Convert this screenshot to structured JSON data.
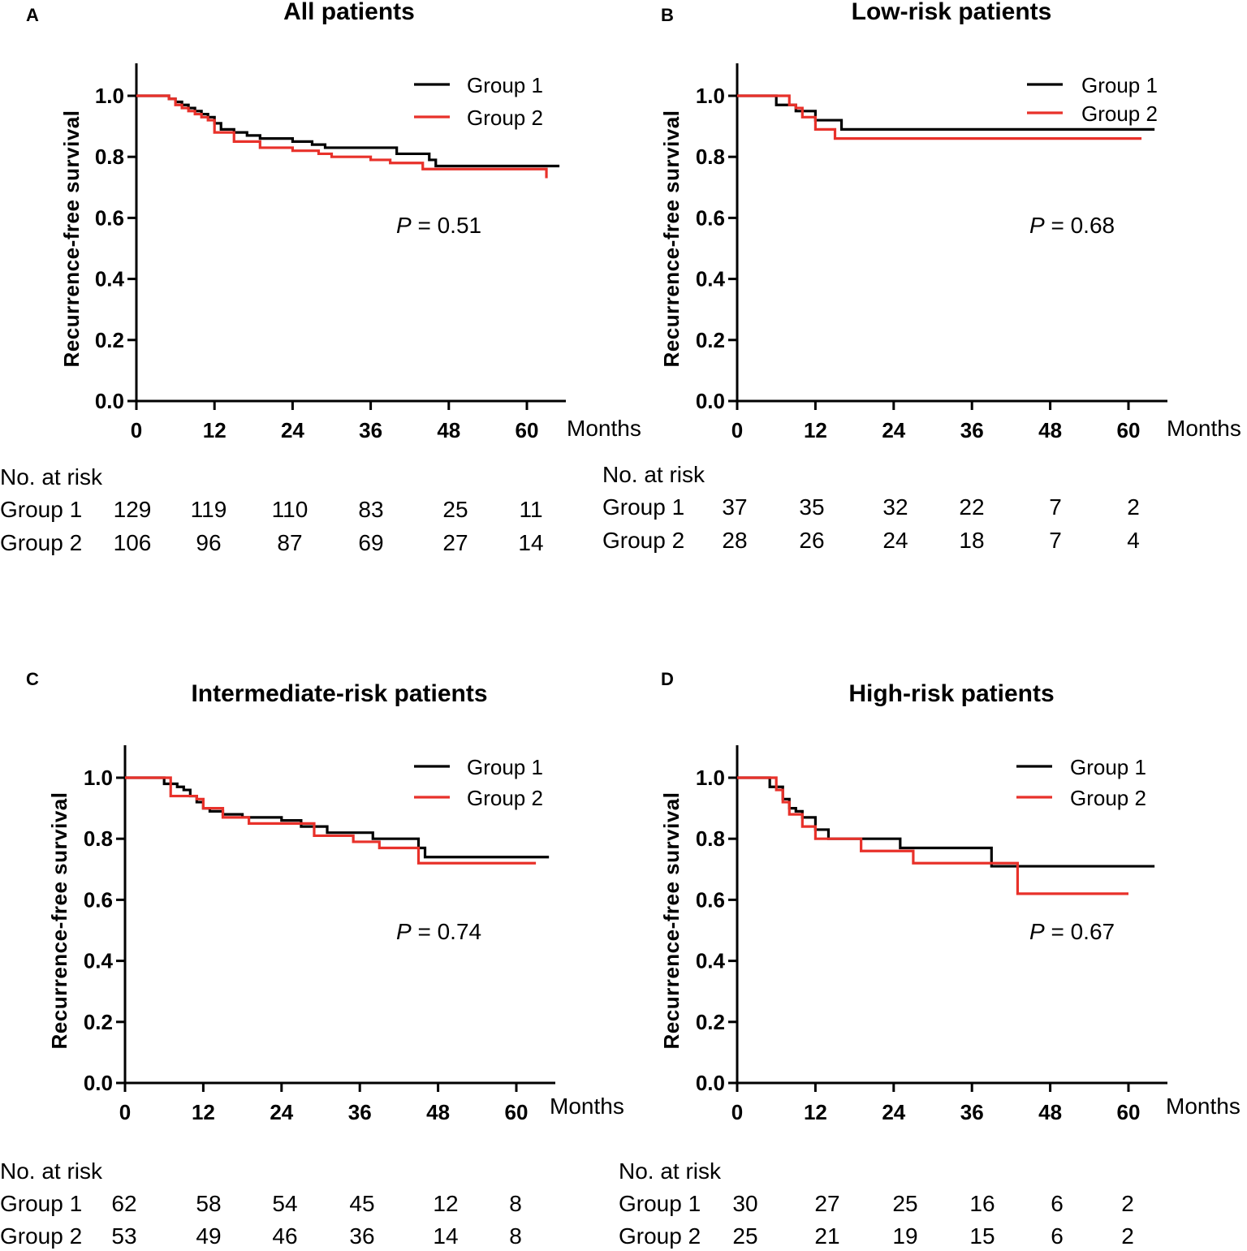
{
  "figure": {
    "colors": {
      "group1": "#000000",
      "group2": "#e8312a"
    }
  },
  "chart_data": [
    {
      "type": "line",
      "panel": "A",
      "title": "All patients",
      "xlabel": "Months",
      "ylabel": "Recurrence-free survival",
      "xlim": [
        0,
        65
      ],
      "ylim": [
        0,
        1.1
      ],
      "xticks": [
        "0",
        "12",
        "24",
        "36",
        "48",
        "60"
      ],
      "yticks": [
        "0.0",
        "0.2",
        "0.4",
        "0.6",
        "0.8",
        "1.0"
      ],
      "legend_position": "top-right",
      "p_value_prefix": "P",
      "p_value_text": " = 0.51",
      "series": [
        {
          "name": "Group 1",
          "color": "#000000",
          "x": [
            0,
            5,
            6,
            7,
            8,
            9,
            10,
            11,
            12,
            13,
            15,
            17,
            19,
            24,
            27,
            29,
            33,
            40,
            45,
            46,
            65
          ],
          "y": [
            1.0,
            0.99,
            0.98,
            0.97,
            0.96,
            0.95,
            0.94,
            0.93,
            0.91,
            0.89,
            0.88,
            0.87,
            0.86,
            0.85,
            0.84,
            0.83,
            0.83,
            0.81,
            0.79,
            0.77,
            0.77
          ]
        },
        {
          "name": "Group 2",
          "color": "#e8312a",
          "x": [
            0,
            5,
            6,
            7,
            8,
            9,
            10,
            11,
            12,
            15,
            19,
            24,
            28,
            30,
            36,
            39,
            44,
            63
          ],
          "y": [
            1.0,
            0.99,
            0.97,
            0.96,
            0.95,
            0.94,
            0.93,
            0.92,
            0.88,
            0.85,
            0.83,
            0.82,
            0.81,
            0.8,
            0.79,
            0.78,
            0.76,
            0.73
          ]
        }
      ],
      "at_risk": {
        "header": "No. at risk",
        "rows": [
          {
            "label": "Group 1",
            "values": [
              "129",
              "119",
              "110",
              "83",
              "25",
              "11"
            ]
          },
          {
            "label": "Group 2",
            "values": [
              "106",
              "96",
              "87",
              "69",
              "27",
              "14"
            ]
          }
        ]
      }
    },
    {
      "type": "line",
      "panel": "B",
      "title": "Low-risk patients",
      "xlabel": "Months",
      "ylabel": "Recurrence-free survival",
      "xlim": [
        0,
        65
      ],
      "ylim": [
        0,
        1.1
      ],
      "xticks": [
        "0",
        "12",
        "24",
        "36",
        "48",
        "60"
      ],
      "yticks": [
        "0.0",
        "0.2",
        "0.4",
        "0.6",
        "0.8",
        "1.0"
      ],
      "legend_position": "top-right",
      "p_value_prefix": "P",
      "p_value_text": " = 0.68",
      "series": [
        {
          "name": "Group 1",
          "color": "#000000",
          "x": [
            0,
            6,
            9,
            12,
            16,
            64
          ],
          "y": [
            1.0,
            0.97,
            0.95,
            0.92,
            0.89,
            0.89
          ]
        },
        {
          "name": "Group 2",
          "color": "#e8312a",
          "x": [
            0,
            8,
            9,
            10,
            12,
            15,
            62
          ],
          "y": [
            1.0,
            0.97,
            0.96,
            0.93,
            0.89,
            0.86,
            0.86
          ]
        }
      ],
      "at_risk": {
        "header": "No. at risk",
        "rows": [
          {
            "label": "Group 1",
            "values": [
              "37",
              "35",
              "32",
              "22",
              "7",
              "2"
            ]
          },
          {
            "label": "Group 2",
            "values": [
              "28",
              "26",
              "24",
              "18",
              "7",
              "4"
            ]
          }
        ]
      }
    },
    {
      "type": "line",
      "panel": "C",
      "title": "Intermediate-risk patients",
      "xlabel": "Months",
      "ylabel": "Recurrence-free survival",
      "xlim": [
        0,
        65
      ],
      "ylim": [
        0,
        1.1
      ],
      "xticks": [
        "0",
        "12",
        "24",
        "36",
        "48",
        "60"
      ],
      "yticks": [
        "0.0",
        "0.2",
        "0.4",
        "0.6",
        "0.8",
        "1.0"
      ],
      "legend_position": "top-right",
      "p_value_prefix": "P",
      "p_value_text": " = 0.74",
      "series": [
        {
          "name": "Group 1",
          "color": "#000000",
          "x": [
            0,
            6,
            8,
            9,
            10,
            11,
            12,
            13,
            15,
            18,
            24,
            27,
            31,
            38,
            45,
            46,
            65
          ],
          "y": [
            1.0,
            0.98,
            0.97,
            0.96,
            0.94,
            0.92,
            0.9,
            0.89,
            0.88,
            0.87,
            0.86,
            0.84,
            0.82,
            0.8,
            0.77,
            0.74,
            0.74
          ]
        },
        {
          "name": "Group 2",
          "color": "#e8312a",
          "x": [
            0,
            7,
            11,
            12,
            15,
            19,
            29,
            35,
            39,
            45,
            63
          ],
          "y": [
            1.0,
            0.94,
            0.93,
            0.9,
            0.87,
            0.85,
            0.81,
            0.79,
            0.77,
            0.72,
            0.72
          ]
        }
      ],
      "at_risk": {
        "header": "No. at risk",
        "rows": [
          {
            "label": "Group 1",
            "values": [
              "62",
              "58",
              "54",
              "45",
              "12",
              "8"
            ]
          },
          {
            "label": "Group 2",
            "values": [
              "53",
              "49",
              "46",
              "36",
              "14",
              "8"
            ]
          }
        ]
      }
    },
    {
      "type": "line",
      "panel": "D",
      "title": "High-risk patients",
      "xlabel": "Months",
      "ylabel": "Recurrence-free survival",
      "xlim": [
        0,
        65
      ],
      "ylim": [
        0,
        1.1
      ],
      "xticks": [
        "0",
        "12",
        "24",
        "36",
        "48",
        "60"
      ],
      "yticks": [
        "0.0",
        "0.2",
        "0.4",
        "0.6",
        "0.8",
        "1.0"
      ],
      "legend_position": "top-right",
      "p_value_prefix": "P",
      "p_value_text": " = 0.67",
      "series": [
        {
          "name": "Group 1",
          "color": "#000000",
          "x": [
            0,
            5,
            7,
            8,
            9,
            10,
            12,
            14,
            25,
            39,
            64
          ],
          "y": [
            1.0,
            0.97,
            0.93,
            0.9,
            0.89,
            0.87,
            0.83,
            0.8,
            0.77,
            0.71,
            0.71
          ]
        },
        {
          "name": "Group 2",
          "color": "#e8312a",
          "x": [
            0,
            6,
            7,
            8,
            10,
            12,
            19,
            27,
            43,
            60
          ],
          "y": [
            1.0,
            0.96,
            0.92,
            0.88,
            0.84,
            0.8,
            0.76,
            0.72,
            0.62,
            0.62
          ]
        }
      ],
      "at_risk": {
        "header": "No. at risk",
        "rows": [
          {
            "label": "Group 1",
            "values": [
              "30",
              "27",
              "25",
              "16",
              "6",
              "2"
            ]
          },
          {
            "label": "Group 2",
            "values": [
              "25",
              "21",
              "19",
              "15",
              "6",
              "2"
            ]
          }
        ]
      }
    }
  ]
}
